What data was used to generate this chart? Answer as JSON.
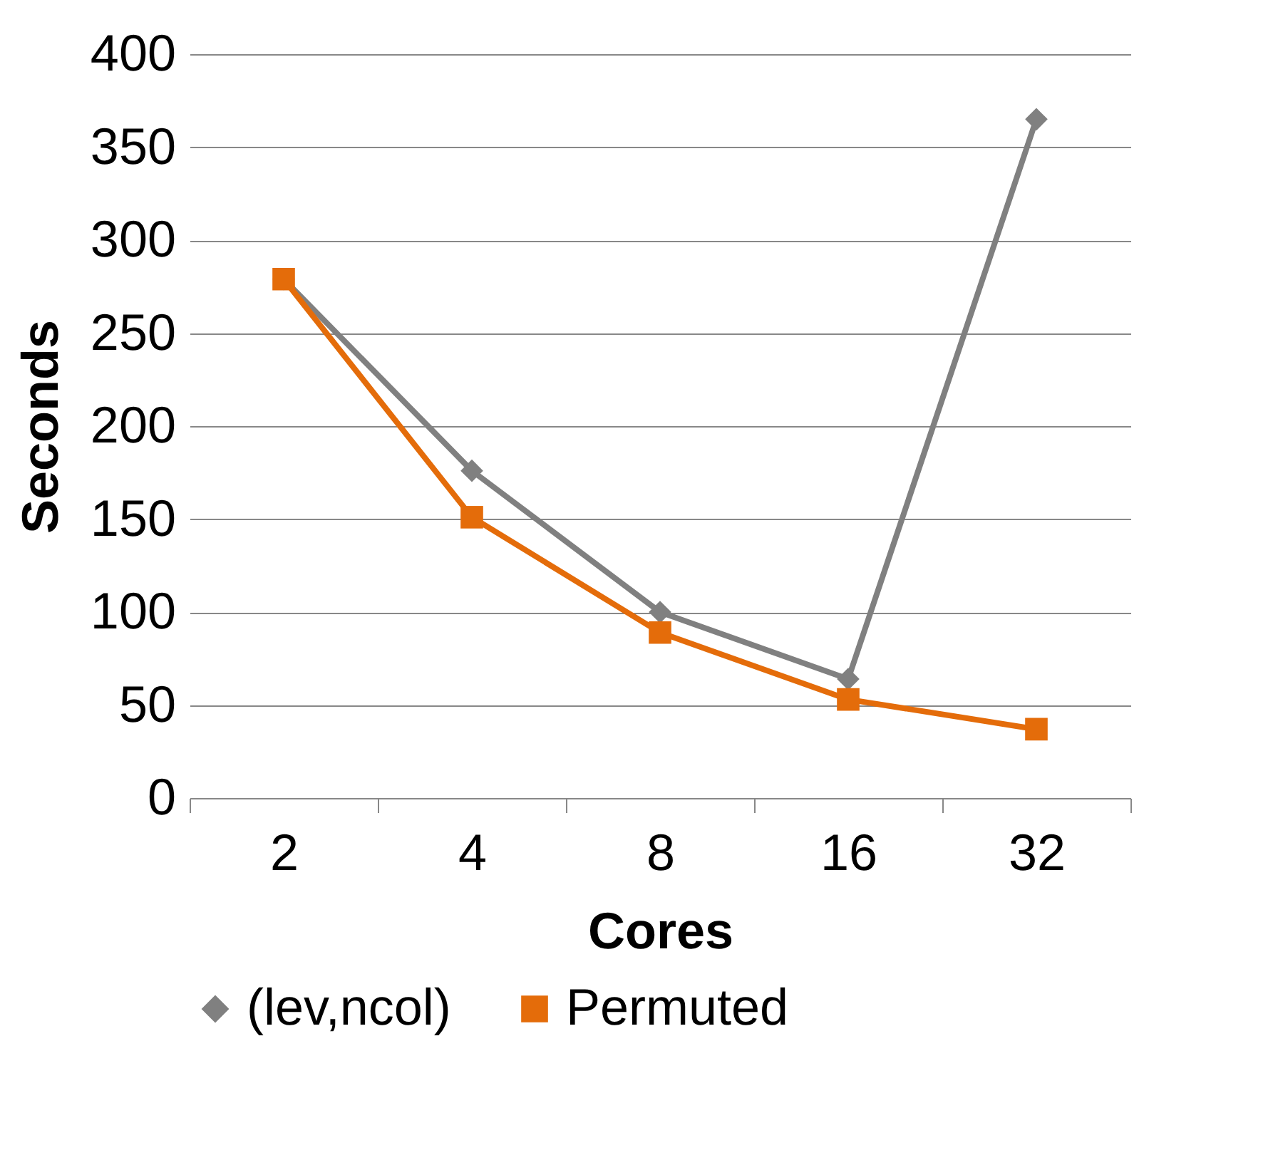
{
  "chart_data": {
    "type": "line",
    "xlabel": "Cores",
    "ylabel": "Seconds",
    "categories": [
      "2",
      "4",
      "8",
      "16",
      "32"
    ],
    "series": [
      {
        "name": "(lev,ncol)",
        "color": "#808080",
        "marker": "diamond",
        "values": [
          279,
          176,
          100,
          64,
          365
        ]
      },
      {
        "name": "Permuted",
        "color": "#e46c0a",
        "marker": "square",
        "values": [
          279,
          151,
          89,
          53,
          37
        ]
      }
    ],
    "ylim": [
      0,
      400
    ],
    "yticks": [
      0,
      50,
      100,
      150,
      200,
      250,
      300,
      350,
      400
    ],
    "grid": "y",
    "legend": "bottom",
    "line_style": "solid"
  }
}
